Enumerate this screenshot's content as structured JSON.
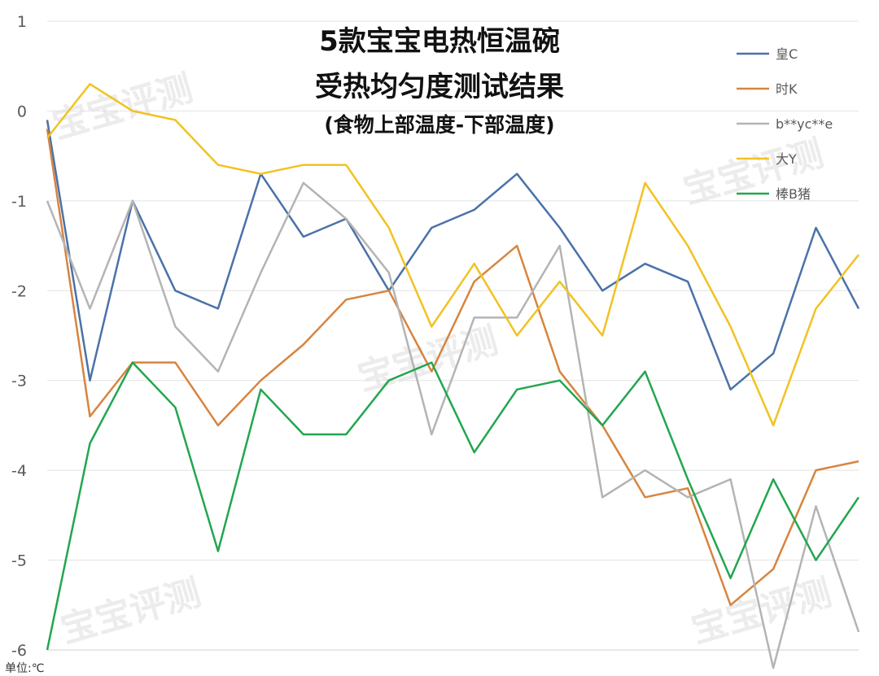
{
  "chart_data": {
    "type": "line",
    "title": "5款宝宝电热恒温碗",
    "title_line2": "受热均匀度测试结果",
    "subtitle": "(食物上部温度-下部温度)",
    "unit_label": "单位:℃",
    "watermark": "宝宝评测",
    "ylim": [
      -6,
      1
    ],
    "yticks": [
      1,
      0,
      -1,
      -2,
      -3,
      -4,
      -5,
      -6
    ],
    "grid": true,
    "legend_position": "top-right",
    "x": [
      1,
      2,
      3,
      4,
      5,
      6,
      7,
      8,
      9,
      10,
      11,
      12,
      13,
      14,
      15,
      16,
      17,
      18,
      19,
      20
    ],
    "series": [
      {
        "name": "皇C",
        "color": "#4a72a8",
        "values": [
          -0.1,
          -3.0,
          -1.0,
          -2.0,
          -2.2,
          -0.7,
          -1.4,
          -1.2,
          -2.0,
          -1.3,
          -1.1,
          -0.7,
          -1.3,
          -2.0,
          -1.7,
          -1.9,
          -3.1,
          -2.7,
          -1.3,
          -2.2
        ]
      },
      {
        "name": "时K",
        "color": "#d7843f",
        "values": [
          -0.2,
          -3.4,
          -2.8,
          -2.8,
          -3.5,
          -3.0,
          -2.6,
          -2.1,
          -2.0,
          -2.9,
          -1.9,
          -1.5,
          -2.9,
          -3.5,
          -4.3,
          -4.2,
          -5.5,
          -5.1,
          -4.0,
          -3.9
        ]
      },
      {
        "name": "b**yc**e",
        "color": "#b4b4b4",
        "values": [
          -1.0,
          -2.2,
          -1.0,
          -2.4,
          -2.9,
          -1.8,
          -0.8,
          -1.2,
          -1.8,
          -3.6,
          -2.3,
          -2.3,
          -1.5,
          -4.3,
          -4.0,
          -4.3,
          -4.1,
          -6.2,
          -4.4,
          -5.8
        ]
      },
      {
        "name": "大Y",
        "color": "#f2c222",
        "values": [
          -0.3,
          0.3,
          0.0,
          -0.1,
          -0.6,
          -0.7,
          -0.6,
          -0.6,
          -1.3,
          -2.4,
          -1.7,
          -2.5,
          -1.9,
          -2.5,
          -0.8,
          -1.5,
          -2.4,
          -3.5,
          -2.2,
          -1.6
        ]
      },
      {
        "name": "棒B猪",
        "color": "#22a64f",
        "values": [
          -6.0,
          -3.7,
          -2.8,
          -3.3,
          -4.9,
          -3.1,
          -3.6,
          -3.6,
          -3.0,
          -2.8,
          -3.8,
          -3.1,
          -3.0,
          -3.5,
          -2.9,
          -4.1,
          -5.2,
          -4.1,
          -5.0,
          -4.3
        ]
      }
    ]
  }
}
